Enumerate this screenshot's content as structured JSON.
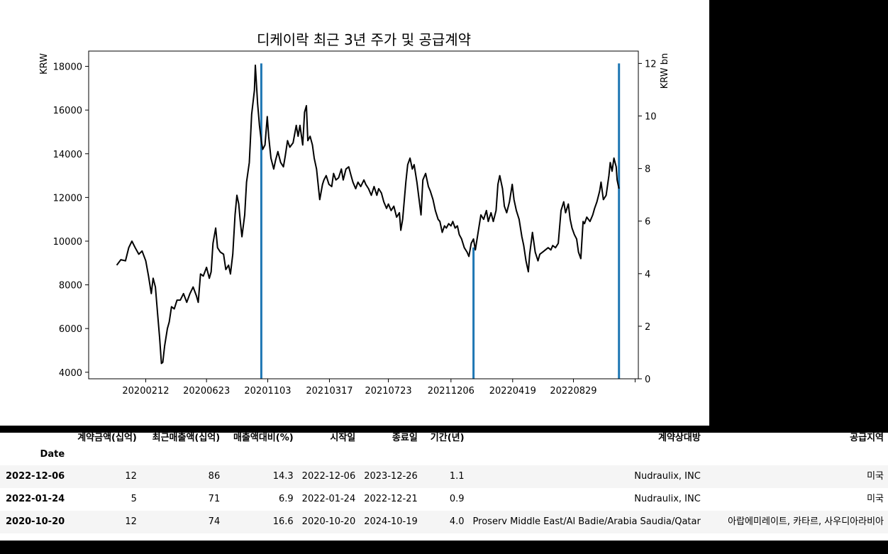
{
  "chart_data": {
    "type": "line",
    "title": "디케이락 최근 3년 주가 및 공급계약",
    "ylabel": "KRW",
    "y2label": "KRW bn",
    "ylim": [
      3700,
      18700
    ],
    "y2lim": [
      0,
      12.47
    ],
    "yticks": [
      4000,
      6000,
      8000,
      10000,
      12000,
      14000,
      16000,
      18000
    ],
    "y2ticks": [
      0,
      2,
      4,
      6,
      8,
      10,
      12
    ],
    "xlim": [
      "2019-10-11",
      "2023-01-17"
    ],
    "xticks": [
      {
        "date": "2020-02-12",
        "label": "20200212"
      },
      {
        "date": "2020-06-23",
        "label": "20200623"
      },
      {
        "date": "2020-11-03",
        "label": "20201103"
      },
      {
        "date": "2021-03-17",
        "label": "20210317"
      },
      {
        "date": "2021-07-23",
        "label": "20210723"
      },
      {
        "date": "2021-12-06",
        "label": "20211206"
      },
      {
        "date": "2022-04-19",
        "label": "20220419"
      },
      {
        "date": "2022-08-29",
        "label": "20220829"
      },
      {
        "date": "2023-01-10",
        "label": ""
      }
    ],
    "series": [
      {
        "kind": "line",
        "color": "#000000",
        "points": [
          [
            "2019-12-11",
            8900
          ],
          [
            "2019-12-20",
            9150
          ],
          [
            "2019-12-30",
            9100
          ],
          [
            "2020-01-06",
            9700
          ],
          [
            "2020-01-13",
            10000
          ],
          [
            "2020-01-20",
            9700
          ],
          [
            "2020-01-28",
            9400
          ],
          [
            "2020-02-04",
            9550
          ],
          [
            "2020-02-12",
            9100
          ],
          [
            "2020-02-18",
            8400
          ],
          [
            "2020-02-24",
            7600
          ],
          [
            "2020-02-28",
            8300
          ],
          [
            "2020-03-04",
            7900
          ],
          [
            "2020-03-09",
            6600
          ],
          [
            "2020-03-13",
            5600
          ],
          [
            "2020-03-17",
            4400
          ],
          [
            "2020-03-20",
            4450
          ],
          [
            "2020-03-24",
            5200
          ],
          [
            "2020-03-30",
            6000
          ],
          [
            "2020-04-03",
            6300
          ],
          [
            "2020-04-08",
            7000
          ],
          [
            "2020-04-14",
            6900
          ],
          [
            "2020-04-20",
            7300
          ],
          [
            "2020-04-27",
            7300
          ],
          [
            "2020-05-04",
            7600
          ],
          [
            "2020-05-11",
            7200
          ],
          [
            "2020-05-18",
            7600
          ],
          [
            "2020-05-25",
            7900
          ],
          [
            "2020-06-01",
            7500
          ],
          [
            "2020-06-05",
            7200
          ],
          [
            "2020-06-10",
            8500
          ],
          [
            "2020-06-16",
            8400
          ],
          [
            "2020-06-23",
            8800
          ],
          [
            "2020-06-29",
            8300
          ],
          [
            "2020-07-03",
            8600
          ],
          [
            "2020-07-07",
            9900
          ],
          [
            "2020-07-13",
            10600
          ],
          [
            "2020-07-17",
            9700
          ],
          [
            "2020-07-23",
            9500
          ],
          [
            "2020-07-30",
            9400
          ],
          [
            "2020-08-04",
            8700
          ],
          [
            "2020-08-10",
            8900
          ],
          [
            "2020-08-14",
            8500
          ],
          [
            "2020-08-19",
            9400
          ],
          [
            "2020-08-24",
            11200
          ],
          [
            "2020-08-28",
            12100
          ],
          [
            "2020-09-01",
            11700
          ],
          [
            "2020-09-04",
            11000
          ],
          [
            "2020-09-08",
            10200
          ],
          [
            "2020-09-14",
            11200
          ],
          [
            "2020-09-18",
            12700
          ],
          [
            "2020-09-24",
            13600
          ],
          [
            "2020-09-29",
            15800
          ],
          [
            "2020-10-05",
            16900
          ],
          [
            "2020-10-07",
            18050
          ],
          [
            "2020-10-12",
            16300
          ],
          [
            "2020-10-16",
            15300
          ],
          [
            "2020-10-20",
            14600
          ],
          [
            "2020-10-23",
            14200
          ],
          [
            "2020-10-28",
            14400
          ],
          [
            "2020-11-02",
            15700
          ],
          [
            "2020-11-05",
            14800
          ],
          [
            "2020-11-10",
            13800
          ],
          [
            "2020-11-16",
            13300
          ],
          [
            "2020-11-20",
            13700
          ],
          [
            "2020-11-25",
            14100
          ],
          [
            "2020-12-01",
            13600
          ],
          [
            "2020-12-07",
            13400
          ],
          [
            "2020-12-11",
            13900
          ],
          [
            "2020-12-16",
            14600
          ],
          [
            "2020-12-21",
            14300
          ],
          [
            "2020-12-28",
            14500
          ],
          [
            "2021-01-04",
            15300
          ],
          [
            "2021-01-08",
            14800
          ],
          [
            "2021-01-12",
            15300
          ],
          [
            "2021-01-18",
            14400
          ],
          [
            "2021-01-22",
            15900
          ],
          [
            "2021-01-26",
            16200
          ],
          [
            "2021-01-29",
            14600
          ],
          [
            "2021-02-03",
            14800
          ],
          [
            "2021-02-08",
            14400
          ],
          [
            "2021-02-12",
            13800
          ],
          [
            "2021-02-17",
            13300
          ],
          [
            "2021-02-22",
            12300
          ],
          [
            "2021-02-24",
            11900
          ],
          [
            "2021-03-02",
            12600
          ],
          [
            "2021-03-05",
            12800
          ],
          [
            "2021-03-10",
            13000
          ],
          [
            "2021-03-16",
            12600
          ],
          [
            "2021-03-22",
            12500
          ],
          [
            "2021-03-26",
            13100
          ],
          [
            "2021-03-31",
            12800
          ],
          [
            "2021-04-06",
            12900
          ],
          [
            "2021-04-12",
            13300
          ],
          [
            "2021-04-16",
            12800
          ],
          [
            "2021-04-22",
            13300
          ],
          [
            "2021-04-28",
            13400
          ],
          [
            "2021-05-03",
            13000
          ],
          [
            "2021-05-07",
            12700
          ],
          [
            "2021-05-13",
            12400
          ],
          [
            "2021-05-18",
            12700
          ],
          [
            "2021-05-24",
            12500
          ],
          [
            "2021-05-31",
            12800
          ],
          [
            "2021-06-04",
            12600
          ],
          [
            "2021-06-10",
            12400
          ],
          [
            "2021-06-16",
            12100
          ],
          [
            "2021-06-22",
            12500
          ],
          [
            "2021-06-28",
            12100
          ],
          [
            "2021-07-02",
            12400
          ],
          [
            "2021-07-08",
            12200
          ],
          [
            "2021-07-13",
            11800
          ],
          [
            "2021-07-19",
            11500
          ],
          [
            "2021-07-23",
            11700
          ],
          [
            "2021-07-29",
            11400
          ],
          [
            "2021-08-04",
            11600
          ],
          [
            "2021-08-10",
            11100
          ],
          [
            "2021-08-16",
            11300
          ],
          [
            "2021-08-19",
            10500
          ],
          [
            "2021-08-23",
            11000
          ],
          [
            "2021-08-30",
            12700
          ],
          [
            "2021-09-03",
            13500
          ],
          [
            "2021-09-08",
            13800
          ],
          [
            "2021-09-13",
            13300
          ],
          [
            "2021-09-17",
            13500
          ],
          [
            "2021-09-23",
            12700
          ],
          [
            "2021-09-29",
            11700
          ],
          [
            "2021-10-02",
            11200
          ],
          [
            "2021-10-06",
            12800
          ],
          [
            "2021-10-12",
            13100
          ],
          [
            "2021-10-18",
            12500
          ],
          [
            "2021-10-22",
            12300
          ],
          [
            "2021-10-28",
            11900
          ],
          [
            "2021-11-02",
            11400
          ],
          [
            "2021-11-08",
            11000
          ],
          [
            "2021-11-12",
            10900
          ],
          [
            "2021-11-17",
            10400
          ],
          [
            "2021-11-22",
            10700
          ],
          [
            "2021-11-26",
            10600
          ],
          [
            "2021-12-01",
            10800
          ],
          [
            "2021-12-06",
            10700
          ],
          [
            "2021-12-10",
            10900
          ],
          [
            "2021-12-15",
            10600
          ],
          [
            "2021-12-20",
            10700
          ],
          [
            "2021-12-24",
            10300
          ],
          [
            "2021-12-29",
            10100
          ],
          [
            "2022-01-04",
            9700
          ],
          [
            "2022-01-10",
            9500
          ],
          [
            "2022-01-14",
            9300
          ],
          [
            "2022-01-19",
            9900
          ],
          [
            "2022-01-24",
            10100
          ],
          [
            "2022-01-28",
            9600
          ],
          [
            "2022-02-03",
            10400
          ],
          [
            "2022-02-09",
            11200
          ],
          [
            "2022-02-15",
            11000
          ],
          [
            "2022-02-21",
            11400
          ],
          [
            "2022-02-25",
            10900
          ],
          [
            "2022-03-03",
            11300
          ],
          [
            "2022-03-08",
            10900
          ],
          [
            "2022-03-14",
            11400
          ],
          [
            "2022-03-18",
            12600
          ],
          [
            "2022-03-22",
            13000
          ],
          [
            "2022-03-28",
            12400
          ],
          [
            "2022-04-01",
            11600
          ],
          [
            "2022-04-06",
            11300
          ],
          [
            "2022-04-12",
            11800
          ],
          [
            "2022-04-18",
            12600
          ],
          [
            "2022-04-22",
            11900
          ],
          [
            "2022-04-27",
            11400
          ],
          [
            "2022-05-03",
            11000
          ],
          [
            "2022-05-09",
            10200
          ],
          [
            "2022-05-13",
            9800
          ],
          [
            "2022-05-18",
            9100
          ],
          [
            "2022-05-23",
            8600
          ],
          [
            "2022-05-26",
            9400
          ],
          [
            "2022-06-01",
            10400
          ],
          [
            "2022-06-07",
            9500
          ],
          [
            "2022-06-13",
            9100
          ],
          [
            "2022-06-17",
            9400
          ],
          [
            "2022-06-23",
            9500
          ],
          [
            "2022-06-29",
            9600
          ],
          [
            "2022-07-05",
            9700
          ],
          [
            "2022-07-11",
            9600
          ],
          [
            "2022-07-15",
            9800
          ],
          [
            "2022-07-21",
            9700
          ],
          [
            "2022-07-27",
            9900
          ],
          [
            "2022-08-02",
            11400
          ],
          [
            "2022-08-08",
            11800
          ],
          [
            "2022-08-12",
            11300
          ],
          [
            "2022-08-18",
            11700
          ],
          [
            "2022-08-22",
            11000
          ],
          [
            "2022-08-26",
            10600
          ],
          [
            "2022-08-31",
            10300
          ],
          [
            "2022-09-05",
            10100
          ],
          [
            "2022-09-09",
            9500
          ],
          [
            "2022-09-14",
            9200
          ],
          [
            "2022-09-19",
            10900
          ],
          [
            "2022-09-22",
            10800
          ],
          [
            "2022-09-27",
            11100
          ],
          [
            "2022-10-04",
            10900
          ],
          [
            "2022-10-10",
            11200
          ],
          [
            "2022-10-14",
            11500
          ],
          [
            "2022-10-19",
            11800
          ],
          [
            "2022-10-25",
            12300
          ],
          [
            "2022-10-28",
            12700
          ],
          [
            "2022-11-02",
            11900
          ],
          [
            "2022-11-08",
            12100
          ],
          [
            "2022-11-14",
            13000
          ],
          [
            "2022-11-17",
            13600
          ],
          [
            "2022-11-21",
            13200
          ],
          [
            "2022-11-25",
            13800
          ],
          [
            "2022-11-30",
            13400
          ],
          [
            "2022-12-02",
            12800
          ],
          [
            "2022-12-06",
            12400
          ]
        ]
      },
      {
        "kind": "bar",
        "axis": "y2",
        "color": "#1f77b4",
        "points": [
          [
            "2020-10-20",
            12
          ],
          [
            "2022-01-24",
            5
          ],
          [
            "2022-12-06",
            12
          ]
        ]
      }
    ]
  },
  "table": {
    "index_label": "Date",
    "columns": [
      "계약금액(십억)",
      "최근매출액(십억)",
      "매출액대비(%)",
      "시작일",
      "종료일",
      "기간(년)",
      "계약상대방",
      "공급지역"
    ],
    "rows": [
      {
        "date": "2022-12-06",
        "cells": [
          "12",
          "86",
          "14.3",
          "2022-12-06",
          "2023-12-26",
          "1.1",
          "Nudraulix, INC",
          "미국"
        ]
      },
      {
        "date": "2022-01-24",
        "cells": [
          "5",
          "71",
          "6.9",
          "2022-01-24",
          "2022-12-21",
          "0.9",
          "Nudraulix, INC",
          "미국"
        ]
      },
      {
        "date": "2020-10-20",
        "cells": [
          "12",
          "74",
          "16.6",
          "2020-10-20",
          "2024-10-19",
          "4.0",
          "Proserv Middle East/Al Badie/Arabia Saudia/Qatar",
          "아랍에미레이트, 카타르, 사우디아라비아"
        ]
      }
    ]
  }
}
